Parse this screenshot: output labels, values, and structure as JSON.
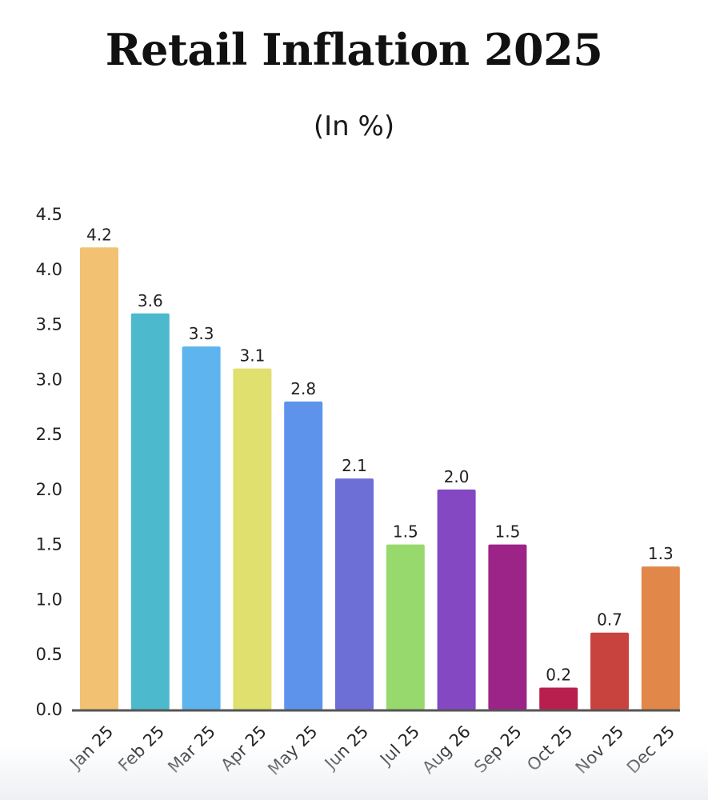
{
  "chart_data": {
    "type": "bar",
    "title": "Retail Inflation 2025",
    "subtitle": "(In %)",
    "xlabel": "",
    "ylabel": "",
    "ylim": [
      0,
      4.5
    ],
    "yticks": [
      "0.0",
      "0.5",
      "1.0",
      "1.5",
      "2.0",
      "2.5",
      "3.0",
      "3.5",
      "4.0",
      "4.5"
    ],
    "grid": false,
    "legend": "none",
    "categories": [
      "Jan 25",
      "Feb 25",
      "Mar 25",
      "Apr 25",
      "May 25",
      "Jun 25",
      "Jul 25",
      "Aug 26",
      "Sep 25",
      "Oct 25",
      "Nov 25",
      "Dec 25"
    ],
    "values": [
      4.2,
      3.6,
      3.3,
      3.1,
      2.8,
      2.1,
      1.5,
      2.0,
      1.5,
      0.2,
      0.7,
      1.3
    ],
    "value_labels": [
      "4.2",
      "3.6",
      "3.3",
      "3.1",
      "2.8",
      "2.1",
      "1.5",
      "2.0",
      "1.5",
      "0.2",
      "0.7",
      "1.3"
    ],
    "colors": [
      "#F2C272",
      "#4DB9CC",
      "#5EB4EE",
      "#DFE06E",
      "#5E93EC",
      "#6E6FD6",
      "#98D96D",
      "#8448C2",
      "#9C2489",
      "#B81F4E",
      "#C9433E",
      "#E1874A"
    ],
    "axis_color": "#555555"
  }
}
